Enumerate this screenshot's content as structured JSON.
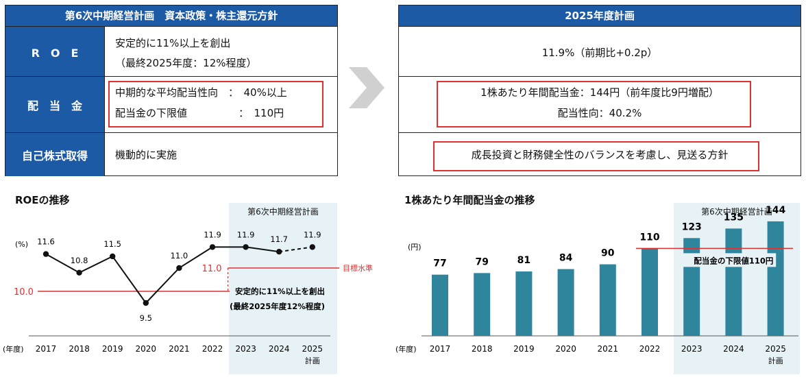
{
  "left_table": {
    "title": "第6次中期経営計画　資本政策・株主還元方針",
    "rows": [
      {
        "label": "R　O　E",
        "lines": [
          "安定的に11%以上を創出",
          "（最終2025年度：12%程度）"
        ]
      },
      {
        "label": "配　当　金",
        "lines": [
          "中期的な平均配当性向　：　40%以上",
          "配当金の下限値　　　　　：　110円"
        ]
      },
      {
        "label": "自己株式取得",
        "lines": [
          "機動的に実施"
        ]
      }
    ]
  },
  "right_table": {
    "title": "2025年度計画",
    "rows": [
      {
        "lines": [
          "11.9%（前期比+0.2p）"
        ]
      },
      {
        "lines": [
          "1株あたり年間配当金：144円（前年度比9円増配）",
          "配当性向：40.2%"
        ]
      },
      {
        "lines": [
          "成長投資と財務健全性のバランスを考慮し、見送る方針"
        ]
      }
    ]
  },
  "chart_data": [
    {
      "type": "line",
      "title": "ROEの推移",
      "ylabel": "(%)",
      "xlabel": "(年度)",
      "categories": [
        "2017",
        "2018",
        "2019",
        "2020",
        "2021",
        "2022",
        "2023",
        "2024",
        "2025"
      ],
      "category_sublabels": [
        "",
        "",
        "",
        "",
        "",
        "",
        "",
        "",
        "計画"
      ],
      "values": [
        11.6,
        10.8,
        11.5,
        9.5,
        11.0,
        11.9,
        11.9,
        11.7,
        11.9
      ],
      "value_labels": [
        "11.6",
        "10.8",
        "11.5",
        "9.5",
        "11.0",
        "11.9",
        "11.9",
        "11.7",
        "11.9"
      ],
      "last_segment_dashed": true,
      "band_label": "第6次中期経営計画",
      "band_categories": [
        "2023",
        "2024",
        "2025"
      ],
      "reference_lines": [
        {
          "value": 10.0,
          "label": "10.0",
          "color": "#e03030"
        },
        {
          "value": 11.0,
          "label": "11.0",
          "color": "#e03030",
          "start_category": "2023",
          "side_label": "目標水準"
        }
      ],
      "annotation": [
        "安定的に11%以上を創出",
        "(最終2025年度12%程度)"
      ],
      "ylim": [
        8.5,
        12.5
      ],
      "colors": {
        "line": "#111111",
        "reference": "#e03030",
        "band": "#e6f2f6"
      }
    },
    {
      "type": "bar",
      "title": "1株あたり年間配当金の推移",
      "ylabel": "(円)",
      "xlabel": "(年度)",
      "categories": [
        "2017",
        "2018",
        "2019",
        "2020",
        "2021",
        "2022",
        "2023",
        "2024",
        "2025"
      ],
      "category_sublabels": [
        "",
        "",
        "",
        "",
        "",
        "",
        "",
        "",
        "計画"
      ],
      "values": [
        77,
        79,
        81,
        84,
        90,
        110,
        123,
        135,
        144
      ],
      "value_labels": [
        "77",
        "79",
        "81",
        "84",
        "90",
        "110",
        "123",
        "135",
        "144"
      ],
      "band_label": "第6次中期経営計画",
      "band_categories": [
        "2023",
        "2024",
        "2025"
      ],
      "reference_line": {
        "value": 110,
        "label": "配当金の下限値110円",
        "color": "#e03030"
      },
      "ylim": [
        0,
        150
      ],
      "colors": {
        "bar": "#2f869c",
        "reference": "#e03030",
        "band": "#e6f2f6"
      }
    }
  ]
}
